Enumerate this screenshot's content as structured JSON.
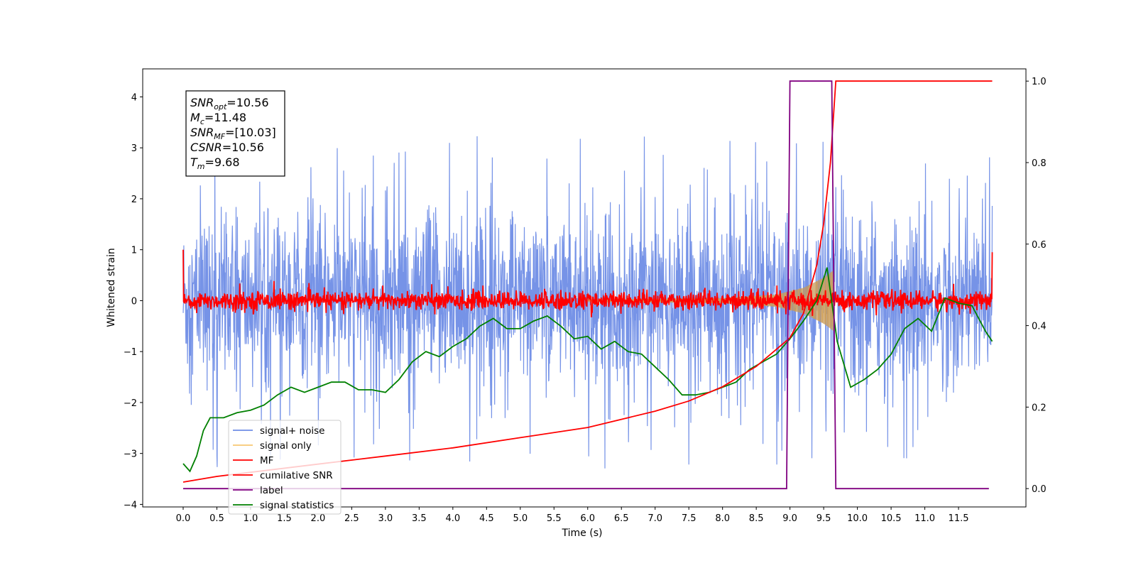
{
  "chart_data": {
    "type": "line",
    "title": "",
    "xlabel": "Time (s)",
    "ylabel": "Whitened strain",
    "y2label": "",
    "xlim": [
      -0.6,
      12.5
    ],
    "ylim": [
      -4.05,
      4.55
    ],
    "y2lim": [
      -0.045,
      1.03
    ],
    "x_ticks": [
      "0.0",
      "0.5",
      "1.0",
      "1.5",
      "2.0",
      "2.5",
      "3.0",
      "3.5",
      "4.0",
      "4.5",
      "5.0",
      "5.5",
      "6.0",
      "6.5",
      "7.0",
      "7.5",
      "8.0",
      "8.5",
      "9.0",
      "9.5",
      "10.0",
      "10.5",
      "11.0",
      "11.5"
    ],
    "y_ticks": [
      "−4",
      "−3",
      "−2",
      "−1",
      "0",
      "1",
      "2",
      "3",
      "4"
    ],
    "y2_ticks": [
      "0.0",
      "0.2",
      "0.4",
      "0.6",
      "0.8",
      "1.0"
    ],
    "grid": false,
    "legend_position": "lower-left",
    "info_box": [
      {
        "sym": "SNR",
        "sub": "opt",
        "val": "=10.56"
      },
      {
        "sym": "M",
        "sub": "c",
        "val": "=11.48"
      },
      {
        "sym": "SNR",
        "sub": "MF",
        "val": "=[10.03]"
      },
      {
        "sym": "CSNR",
        "sub": "",
        "val": "=10.56"
      },
      {
        "sym": "T",
        "sub": "m",
        "val": "=9.68"
      }
    ],
    "series": [
      {
        "name": "signal+ noise",
        "color": "#6f8de6",
        "axis": "left",
        "style": "noise band roughly ±1 with spikes to about ±3.3",
        "x_range": [
          0,
          12.0
        ]
      },
      {
        "name": "signal only",
        "color": "#f5b950",
        "axis": "left",
        "style": "chirp envelope growing to about ±0.6 near 9.6 s",
        "envelope": {
          "x": [
            0,
            6.0,
            8.0,
            8.8,
            9.2,
            9.5,
            9.65
          ],
          "y": [
            0.0,
            0.02,
            0.05,
            0.12,
            0.25,
            0.45,
            0.6
          ]
        }
      },
      {
        "name": "MF",
        "color": "#ff0000",
        "axis": "left",
        "style": "matched-filter output, near zero with noise about ±0.2",
        "x_range": [
          0,
          12.0
        ]
      },
      {
        "name": "cumilative SNR",
        "color": "#ff0000",
        "axis": "right",
        "x": [
          0,
          0.5,
          1.0,
          2.0,
          3.0,
          4.0,
          5.0,
          6.0,
          7.0,
          7.5,
          8.0,
          8.5,
          9.0,
          9.2,
          9.4,
          9.5,
          9.6,
          9.68,
          12.0
        ],
        "y": [
          0.016,
          0.03,
          0.04,
          0.06,
          0.08,
          0.1,
          0.125,
          0.15,
          0.19,
          0.215,
          0.25,
          0.3,
          0.37,
          0.43,
          0.55,
          0.65,
          0.8,
          1.0,
          1.0
        ]
      },
      {
        "name": "label",
        "color": "#800080",
        "axis": "right",
        "x": [
          0,
          8.95,
          9.0,
          9.62,
          9.68,
          11.95
        ],
        "y": [
          0.0,
          0.0,
          1.0,
          1.0,
          0.0,
          0.0
        ]
      },
      {
        "name": "signal statistics",
        "color": "#008000",
        "axis": "left",
        "x": [
          0.0,
          0.1,
          0.2,
          0.3,
          0.4,
          0.6,
          0.8,
          1.0,
          1.2,
          1.4,
          1.6,
          1.8,
          2.0,
          2.2,
          2.4,
          2.6,
          2.8,
          3.0,
          3.2,
          3.4,
          3.6,
          3.8,
          4.0,
          4.2,
          4.4,
          4.6,
          4.8,
          5.0,
          5.2,
          5.4,
          5.6,
          5.8,
          6.0,
          6.2,
          6.4,
          6.6,
          6.8,
          7.0,
          7.2,
          7.4,
          7.6,
          7.8,
          8.0,
          8.2,
          8.4,
          8.6,
          8.8,
          9.0,
          9.2,
          9.4,
          9.55,
          9.7,
          9.9,
          10.1,
          10.3,
          10.5,
          10.7,
          10.9,
          11.1,
          11.3,
          11.5,
          11.7,
          11.9,
          12.0
        ],
        "y": [
          -3.2,
          -3.35,
          -3.05,
          -2.55,
          -2.3,
          -2.3,
          -2.2,
          -2.15,
          -2.05,
          -1.85,
          -1.7,
          -1.8,
          -1.7,
          -1.6,
          -1.6,
          -1.75,
          -1.75,
          -1.8,
          -1.55,
          -1.2,
          -1.0,
          -1.1,
          -0.9,
          -0.75,
          -0.5,
          -0.35,
          -0.55,
          -0.55,
          -0.4,
          -0.3,
          -0.5,
          -0.75,
          -0.7,
          -0.95,
          -0.8,
          -1.0,
          -1.05,
          -1.3,
          -1.55,
          -1.85,
          -1.85,
          -1.8,
          -1.7,
          -1.6,
          -1.35,
          -1.2,
          -1.05,
          -0.75,
          -0.4,
          0.0,
          0.65,
          -0.8,
          -1.7,
          -1.55,
          -1.35,
          -1.05,
          -0.55,
          -0.35,
          -0.6,
          0.05,
          -0.05,
          -0.1,
          -0.6,
          -0.8
        ]
      }
    ]
  }
}
